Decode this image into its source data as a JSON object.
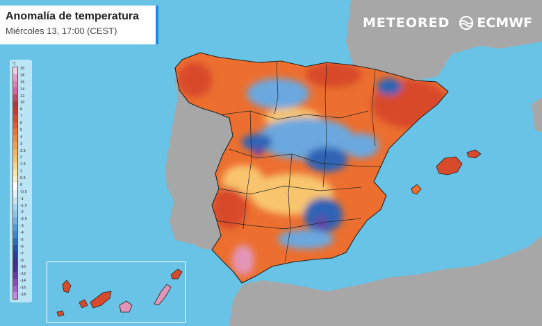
{
  "header": {
    "title": "Anomalía de temperatura",
    "subtitle": "Miércoles 13, 17:00 (CEST)"
  },
  "logos": {
    "meteored": "METEORED",
    "ecmwf": "ECMWF"
  },
  "legend": {
    "unit": "°C",
    "labels": [
      "20",
      "18",
      "16",
      "14",
      "12",
      "10",
      "8",
      "7",
      "6",
      "5",
      "4",
      "3",
      "2.5",
      "2",
      "1.5",
      "1",
      "0.5",
      "0",
      "-0.5",
      "-1",
      "-1.5",
      "-2",
      "-2.5",
      "-3",
      "-4",
      "-5",
      "-6",
      "-7",
      "-8",
      "-10",
      "-12",
      "-14",
      "-16",
      "-18"
    ],
    "colors": [
      "#f5c8e4",
      "#e89bc6",
      "#e07fb0",
      "#d9629a",
      "#c24868",
      "#b03a3a",
      "#c8392f",
      "#d84a2c",
      "#e35d2e",
      "#ec7432",
      "#f28a3c",
      "#f5a04a",
      "#f8b45a",
      "#f9c46c",
      "#fbd586",
      "#fbe3a3",
      "#fcefc3",
      "#ffffff",
      "#e2f0f8",
      "#c8e3f3",
      "#aad4ee",
      "#8fc5e8",
      "#72b3e0",
      "#569ed6",
      "#3d86c9",
      "#2b6db8",
      "#2556a5",
      "#2a4196",
      "#3a338a",
      "#4b2f8e",
      "#6a3a9e",
      "#8a4cb4",
      "#a664c8",
      "#c184dc"
    ]
  },
  "map_colors": {
    "sea": "#69c3e6",
    "land": "#a7a7a7",
    "warm": "#ec6f2f",
    "hot": "#d84a2c",
    "mild": "#f8c56e",
    "cool": "#6aa8df",
    "cold": "#2f63b5",
    "very_cold": "#6b3fa8",
    "extreme": "#e395b8"
  }
}
